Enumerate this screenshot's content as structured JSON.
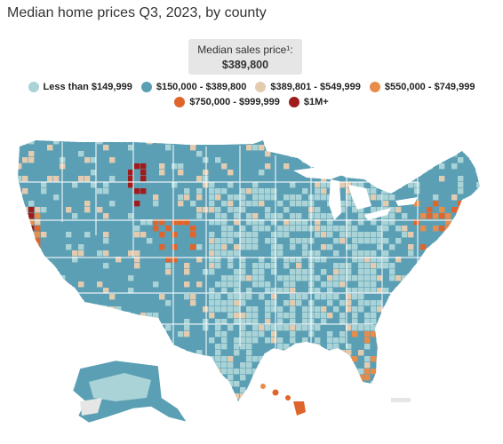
{
  "title": "Median home prices Q3, 2023, by county",
  "median": {
    "label": "Median sales price¹:",
    "value": "$389,800"
  },
  "legend": {
    "items": [
      {
        "label": "Less than $149,999",
        "color": "#a9d3d6"
      },
      {
        "label": "$150,000 - $389,800",
        "color": "#5b9fb5"
      },
      {
        "label": "$389,801 - $549,999",
        "color": "#e3cbb0"
      },
      {
        "label": "$550,000 - $749,999",
        "color": "#e88c4a"
      },
      {
        "label": "$750,000 - $999,999",
        "color": "#e0652c"
      },
      {
        "label": "$1M+",
        "color": "#a01c1c"
      }
    ]
  },
  "colors": {
    "low": "#a9d3d6",
    "mid": "#5b9fb5",
    "upper": "#e3cbb0",
    "high": "#e88c4a",
    "veryhigh": "#e0652c",
    "top": "#a01c1c",
    "nodata": "#e6e6e6"
  }
}
